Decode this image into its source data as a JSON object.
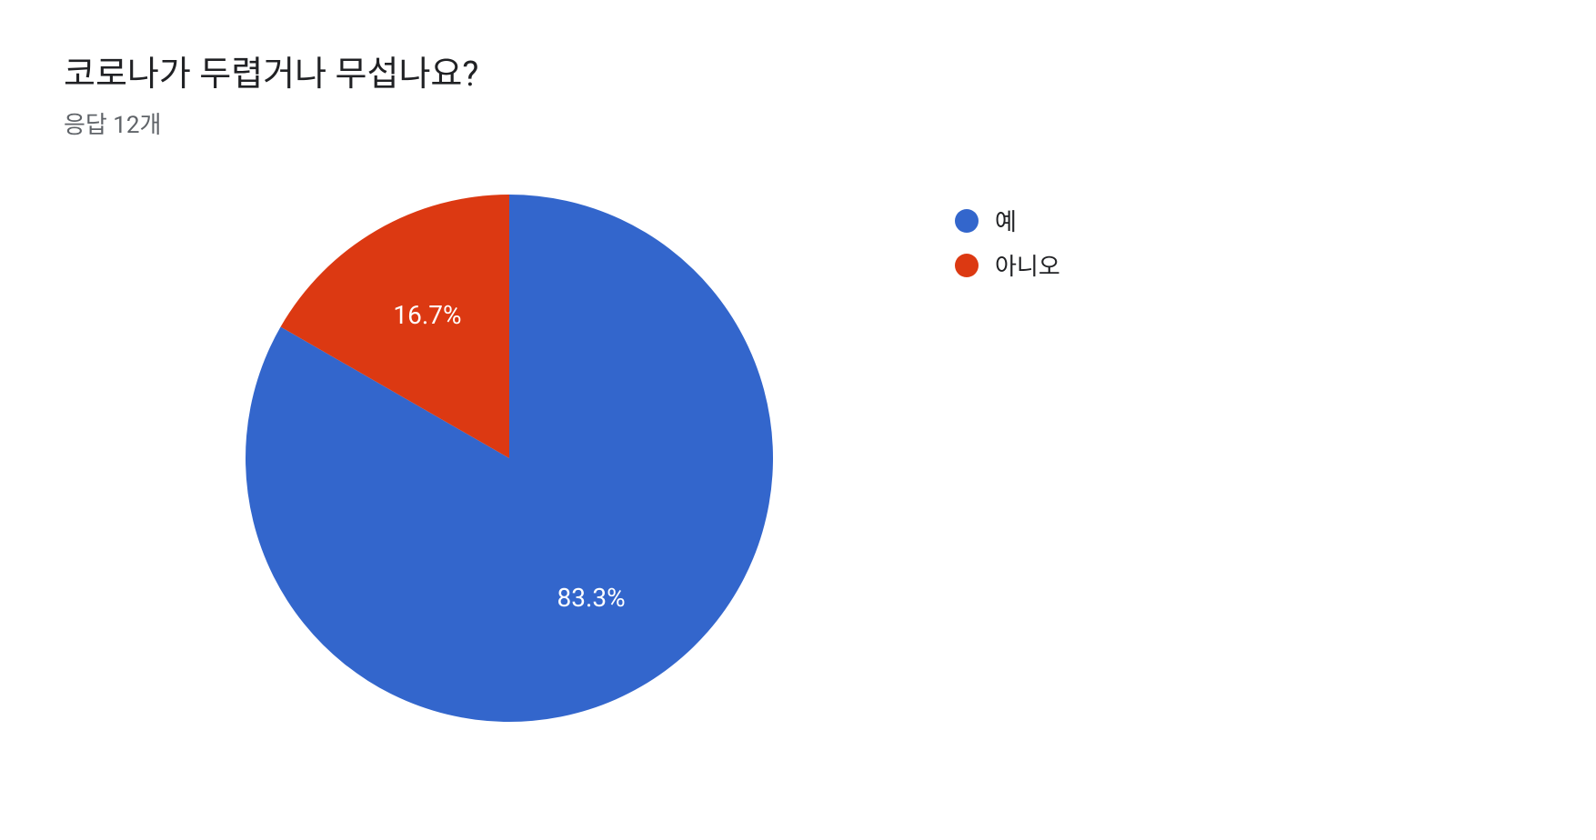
{
  "title": "코로나가 두렵거나 무섭나요?",
  "subtitle": "응답 12개",
  "chart": {
    "type": "pie",
    "background_color": "#ffffff",
    "slices": [
      {
        "label": "예",
        "value": 83.3,
        "display_label": "83.3%",
        "color": "#3366cc"
      },
      {
        "label": "아니오",
        "value": 16.7,
        "display_label": "16.7%",
        "color": "#dc3912"
      }
    ],
    "label_color": "#ffffff",
    "label_fontsize": 28,
    "title_fontsize": 38,
    "title_color": "#202124",
    "subtitle_fontsize": 26,
    "subtitle_color": "#5f6368",
    "legend_fontsize": 26,
    "legend_marker_size": 26,
    "pie_radius": 290,
    "start_angle_deg": -90
  }
}
